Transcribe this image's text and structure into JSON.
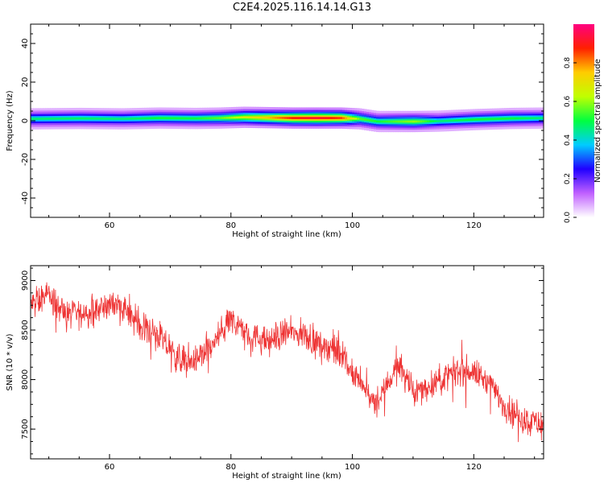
{
  "title": "C2E4.2025.116.14.14.G13",
  "chart_data": [
    {
      "type": "heatmap",
      "xlabel": "Height of straight line (km)",
      "ylabel": "Frequency (Hz)",
      "xlim": [
        47,
        131.5
      ],
      "ylim": [
        -50,
        50
      ],
      "xticks": [
        60,
        80,
        100,
        120
      ],
      "yticks": [
        -40,
        -20,
        0,
        20,
        40
      ],
      "colorbar": {
        "label": "Normalized spectral amplitude",
        "range": [
          0,
          1
        ],
        "ticks": [
          0.0,
          0.2,
          0.4,
          0.6,
          0.8
        ],
        "tick_labels": [
          "0.0",
          "0.2",
          "0.4",
          "0.6",
          "0.8"
        ],
        "colors": [
          "#ffffff",
          "#c060ff",
          "#2000ff",
          "#00ccff",
          "#00ff40",
          "#c0ff00",
          "#ffcc00",
          "#ff2000",
          "#ff0080"
        ]
      },
      "ridge": [
        {
          "x": 47,
          "f": 1.0,
          "amp": 0.5
        },
        {
          "x": 55,
          "f": 1.2,
          "amp": 0.52
        },
        {
          "x": 62,
          "f": 1.0,
          "amp": 0.5
        },
        {
          "x": 68,
          "f": 1.4,
          "amp": 0.55
        },
        {
          "x": 74,
          "f": 1.2,
          "amp": 0.55
        },
        {
          "x": 78,
          "f": 1.4,
          "amp": 0.6
        },
        {
          "x": 82,
          "f": 1.8,
          "amp": 0.72
        },
        {
          "x": 86,
          "f": 1.6,
          "amp": 0.82
        },
        {
          "x": 90,
          "f": 1.4,
          "amp": 0.95
        },
        {
          "x": 94,
          "f": 1.4,
          "amp": 1.0
        },
        {
          "x": 98,
          "f": 1.4,
          "amp": 0.92
        },
        {
          "x": 101,
          "f": 1.0,
          "amp": 0.6
        },
        {
          "x": 104,
          "f": -0.4,
          "amp": 0.55
        },
        {
          "x": 110,
          "f": -0.4,
          "amp": 0.65
        },
        {
          "x": 114,
          "f": -0.2,
          "amp": 0.5
        },
        {
          "x": 120,
          "f": 0.6,
          "amp": 0.55
        },
        {
          "x": 126,
          "f": 1.2,
          "amp": 0.55
        },
        {
          "x": 131.5,
          "f": 1.4,
          "amp": 0.5
        }
      ]
    },
    {
      "type": "line",
      "xlabel": "Height of straight line (km)",
      "ylabel": "SNR (10 * v/v)",
      "xlim": [
        47,
        131.5
      ],
      "ylim": [
        7200,
        9150
      ],
      "xticks": [
        60,
        80,
        100,
        120
      ],
      "yticks": [
        7500,
        8000,
        8500,
        9000
      ],
      "series": [
        {
          "color": "#ee3333",
          "trend": [
            {
              "x": 47,
              "y": 8750
            },
            {
              "x": 50,
              "y": 8850
            },
            {
              "x": 53,
              "y": 8650
            },
            {
              "x": 57,
              "y": 8680
            },
            {
              "x": 61,
              "y": 8780
            },
            {
              "x": 64,
              "y": 8600
            },
            {
              "x": 68,
              "y": 8450
            },
            {
              "x": 71,
              "y": 8220
            },
            {
              "x": 74,
              "y": 8180
            },
            {
              "x": 77,
              "y": 8350
            },
            {
              "x": 80,
              "y": 8600
            },
            {
              "x": 83,
              "y": 8450
            },
            {
              "x": 86,
              "y": 8380
            },
            {
              "x": 89,
              "y": 8480
            },
            {
              "x": 92,
              "y": 8450
            },
            {
              "x": 95,
              "y": 8350
            },
            {
              "x": 98,
              "y": 8300
            },
            {
              "x": 100,
              "y": 8050
            },
            {
              "x": 102,
              "y": 7900
            },
            {
              "x": 104,
              "y": 7720
            },
            {
              "x": 106,
              "y": 8000
            },
            {
              "x": 108,
              "y": 8150
            },
            {
              "x": 110,
              "y": 7850
            },
            {
              "x": 113,
              "y": 7950
            },
            {
              "x": 116,
              "y": 8050
            },
            {
              "x": 119,
              "y": 8100
            },
            {
              "x": 122,
              "y": 8000
            },
            {
              "x": 125,
              "y": 7750
            },
            {
              "x": 128,
              "y": 7600
            },
            {
              "x": 131.5,
              "y": 7550
            }
          ],
          "noise": 90
        }
      ]
    }
  ]
}
